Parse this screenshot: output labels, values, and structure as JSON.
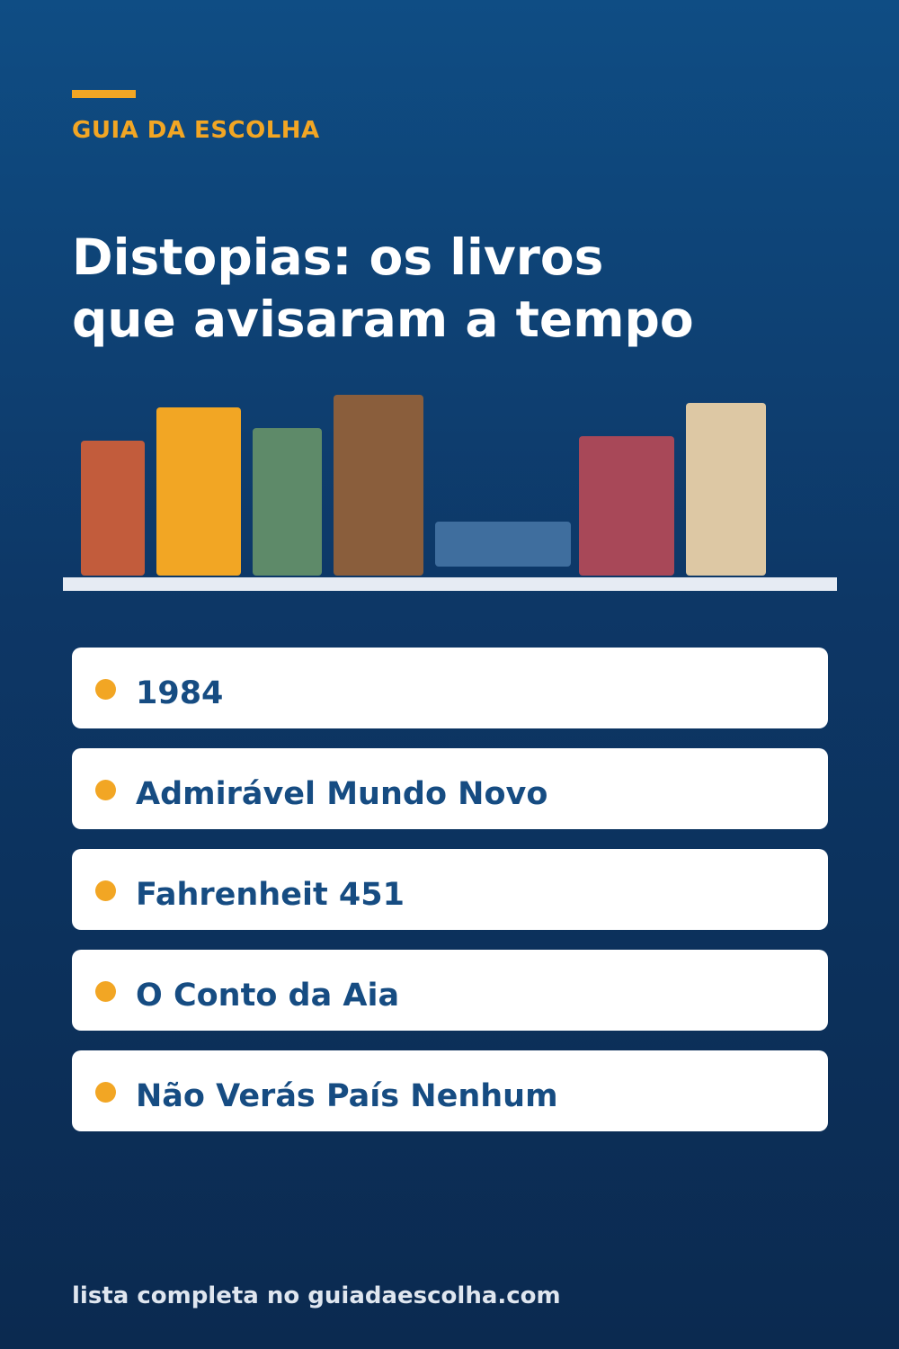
{
  "header": {
    "brand": "GUIA DA ESCOLHA",
    "title_line1": "Distopias: os livros",
    "title_line2": "que avisaram a tempo"
  },
  "bookshelf": {
    "book_colors": [
      "#c25c3c",
      "#f2a624",
      "#5e8a69",
      "#8a5e3c",
      "#3f6e9e",
      "#a84858",
      "#ddc8a4"
    ],
    "shelf_color": "#e6ebf3"
  },
  "list": {
    "items": [
      {
        "label": "1984"
      },
      {
        "label": "Admirável Mundo Novo"
      },
      {
        "label": "Fahrenheit 451"
      },
      {
        "label": "O Conto da Aia"
      },
      {
        "label": "Não Verás País Nenhum"
      }
    ]
  },
  "footer": {
    "text": "lista completa no guiadaescolha.com"
  },
  "colors": {
    "accent": "#f2a624",
    "item_text": "#164c82",
    "background_top": "#0f4d84",
    "background_bottom": "#0b2a50"
  }
}
